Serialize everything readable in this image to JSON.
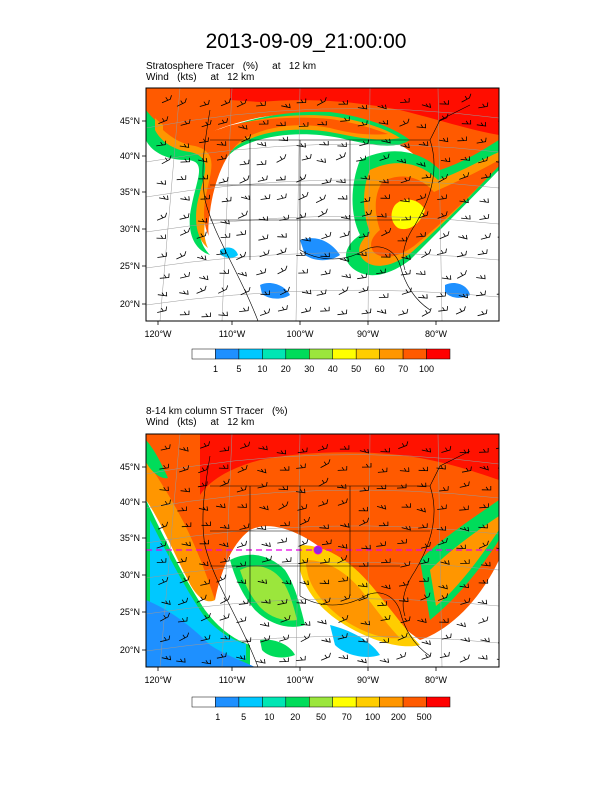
{
  "title": "2013-09-09_21:00:00",
  "panels": [
    {
      "line1": "Stratosphere Tracer   (%)     at   12 km",
      "line2": "Wind   (kts)     at   12 km",
      "lon_labels": [
        "120°W",
        "110°W",
        "100°W",
        "90°W",
        "80°W"
      ],
      "lat_labels": [
        "45°N",
        "40°N",
        "35°N",
        "30°N",
        "25°N",
        "20°N"
      ],
      "colorbar": {
        "colors": [
          "#ffffff",
          "#1e90ff",
          "#00c8ff",
          "#00e6b4",
          "#00dc5a",
          "#9be63c",
          "#ffff00",
          "#ffcd00",
          "#ff9600",
          "#ff5a00",
          "#ff0000"
        ],
        "labels": [
          "1",
          "5",
          "10",
          "20",
          "30",
          "40",
          "50",
          "60",
          "70",
          "100"
        ]
      }
    },
    {
      "line1": "8-14 km column ST Tracer   (%)",
      "line2": "Wind   (kts)     at   12 km",
      "lon_labels": [
        "120°W",
        "110°W",
        "100°W",
        "90°W",
        "80°W"
      ],
      "lat_labels": [
        "45°N",
        "40°N",
        "35°N",
        "30°N",
        "25°N",
        "20°N"
      ],
      "colorbar": {
        "colors": [
          "#ffffff",
          "#1e90ff",
          "#00c8ff",
          "#00e6b4",
          "#00dc5a",
          "#9be63c",
          "#ffff00",
          "#ffcd00",
          "#ff9600",
          "#ff5a00",
          "#ff0000"
        ],
        "labels": [
          "1",
          "5",
          "10",
          "20",
          "50",
          "70",
          "100",
          "200",
          "500"
        ]
      }
    }
  ]
}
